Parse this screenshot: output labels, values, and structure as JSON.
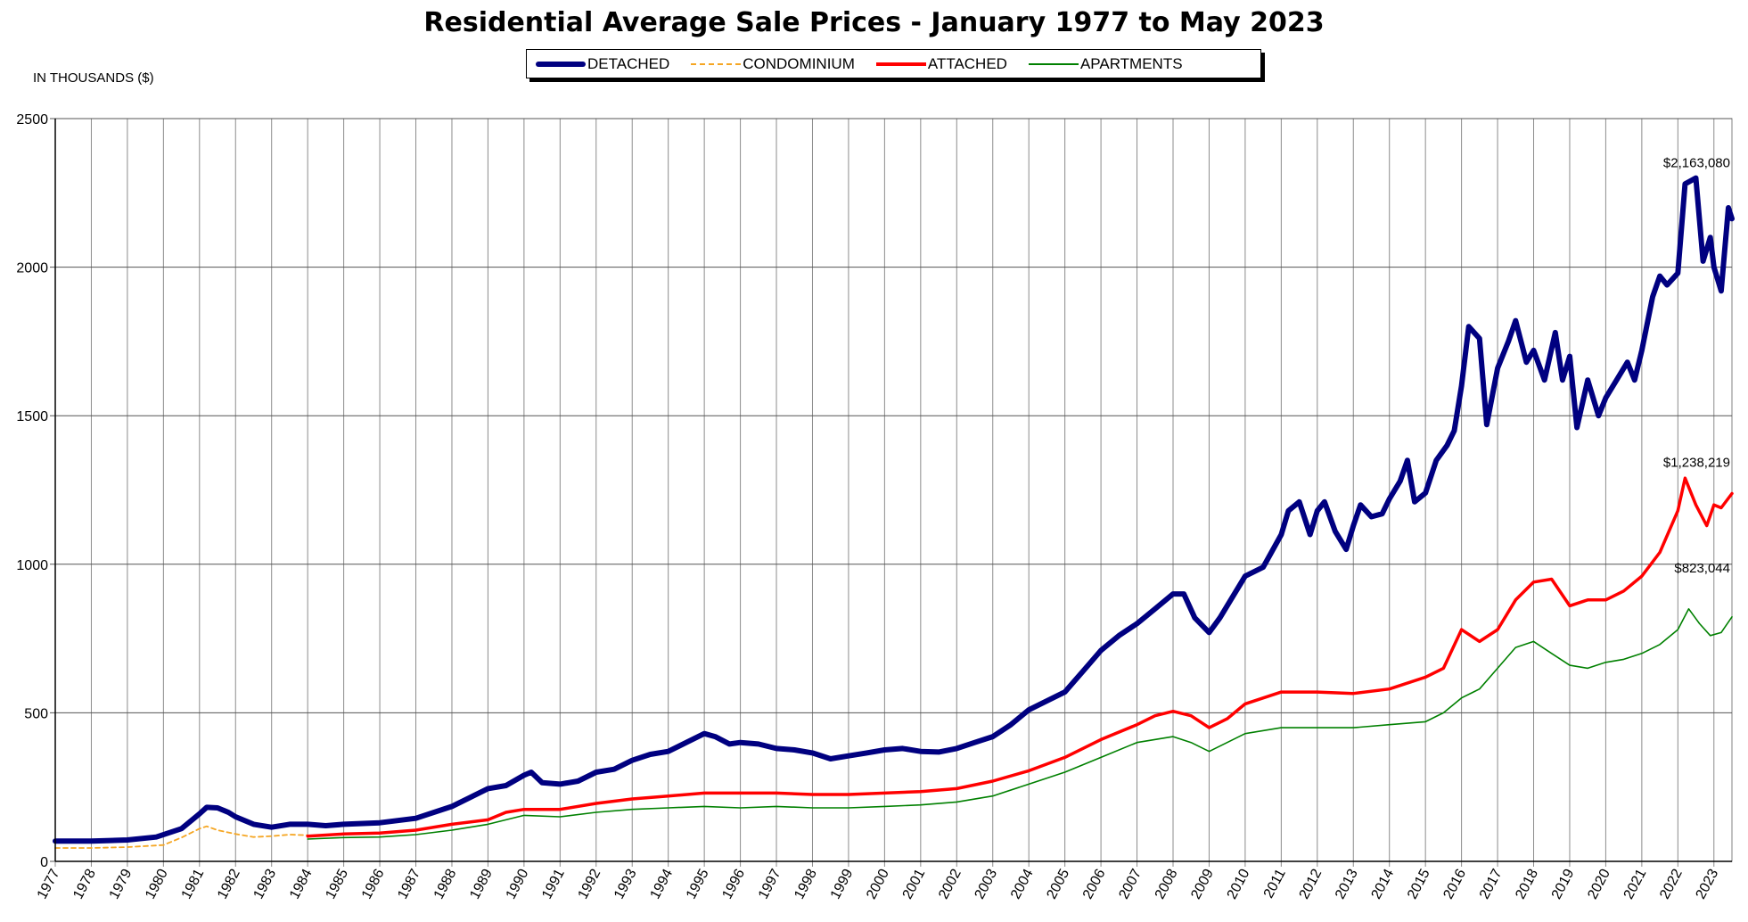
{
  "header": {
    "title": "Residential Average Sale Prices  -  January 1977 to May 2023",
    "units_label": "IN THOUSANDS ($)"
  },
  "legend": [
    {
      "name": "DETACHED",
      "color": "#000080",
      "style": "thick-solid"
    },
    {
      "name": "CONDOMINIUM",
      "color": "#F5A623",
      "style": "dashed"
    },
    {
      "name": "ATTACHED",
      "color": "#FF0000",
      "style": "solid"
    },
    {
      "name": "APARTMENTS",
      "color": "#008000",
      "style": "thin-solid"
    }
  ],
  "chart_data": {
    "type": "line",
    "title": "Residential Average Sale Prices  -  January 1977 to May 2023",
    "ylabel": "IN THOUSANDS ($)",
    "xlim": [
      1977,
      2023.5
    ],
    "ylim": [
      0,
      2500
    ],
    "yticks": [
      0,
      500,
      1000,
      1500,
      2000,
      2500
    ],
    "xticks": [
      "1977",
      "1978",
      "1979",
      "1980",
      "1981",
      "1982",
      "1983",
      "1984",
      "1985",
      "1986",
      "1987",
      "1988",
      "1989",
      "1990",
      "1991",
      "1992",
      "1993",
      "1994",
      "1995",
      "1996",
      "1997",
      "1998",
      "1999",
      "2000",
      "2001",
      "2002",
      "2003",
      "2004",
      "2005",
      "2006",
      "2007",
      "2008",
      "2009",
      "2010",
      "2011",
      "2012",
      "2013",
      "2014",
      "2015",
      "2016",
      "2017",
      "2018",
      "2019",
      "2020",
      "2021",
      "2022",
      "2023"
    ],
    "grid": true,
    "legend_position": "top-center",
    "series": [
      {
        "name": "DETACHED",
        "color": "#000080",
        "points": [
          [
            1977.0,
            68
          ],
          [
            1978.0,
            68
          ],
          [
            1979.0,
            72
          ],
          [
            1979.8,
            82
          ],
          [
            1980.5,
            110
          ],
          [
            1981.0,
            160
          ],
          [
            1981.2,
            182
          ],
          [
            1981.5,
            180
          ],
          [
            1981.8,
            165
          ],
          [
            1982.0,
            150
          ],
          [
            1982.5,
            125
          ],
          [
            1983.0,
            115
          ],
          [
            1983.5,
            125
          ],
          [
            1984.0,
            125
          ],
          [
            1984.5,
            120
          ],
          [
            1985.0,
            125
          ],
          [
            1986.0,
            130
          ],
          [
            1987.0,
            145
          ],
          [
            1988.0,
            185
          ],
          [
            1988.5,
            215
          ],
          [
            1989.0,
            245
          ],
          [
            1989.5,
            255
          ],
          [
            1990.0,
            290
          ],
          [
            1990.2,
            300
          ],
          [
            1990.5,
            265
          ],
          [
            1991.0,
            260
          ],
          [
            1991.5,
            270
          ],
          [
            1992.0,
            300
          ],
          [
            1992.5,
            310
          ],
          [
            1993.0,
            340
          ],
          [
            1993.5,
            360
          ],
          [
            1994.0,
            370
          ],
          [
            1994.5,
            400
          ],
          [
            1995.0,
            430
          ],
          [
            1995.3,
            420
          ],
          [
            1995.7,
            395
          ],
          [
            1996.0,
            400
          ],
          [
            1996.5,
            395
          ],
          [
            1997.0,
            380
          ],
          [
            1997.5,
            375
          ],
          [
            1998.0,
            365
          ],
          [
            1998.5,
            345
          ],
          [
            1999.0,
            355
          ],
          [
            1999.5,
            365
          ],
          [
            2000.0,
            375
          ],
          [
            2000.5,
            380
          ],
          [
            2001.0,
            370
          ],
          [
            2001.5,
            368
          ],
          [
            2002.0,
            380
          ],
          [
            2002.5,
            400
          ],
          [
            2003.0,
            420
          ],
          [
            2003.5,
            460
          ],
          [
            2004.0,
            510
          ],
          [
            2004.5,
            540
          ],
          [
            2005.0,
            570
          ],
          [
            2005.5,
            640
          ],
          [
            2006.0,
            710
          ],
          [
            2006.5,
            760
          ],
          [
            2007.0,
            800
          ],
          [
            2007.5,
            850
          ],
          [
            2008.0,
            900
          ],
          [
            2008.3,
            900
          ],
          [
            2008.6,
            820
          ],
          [
            2009.0,
            770
          ],
          [
            2009.3,
            820
          ],
          [
            2009.6,
            880
          ],
          [
            2010.0,
            960
          ],
          [
            2010.5,
            990
          ],
          [
            2011.0,
            1100
          ],
          [
            2011.2,
            1180
          ],
          [
            2011.5,
            1210
          ],
          [
            2011.8,
            1100
          ],
          [
            2012.0,
            1180
          ],
          [
            2012.2,
            1210
          ],
          [
            2012.5,
            1110
          ],
          [
            2012.8,
            1050
          ],
          [
            2013.0,
            1130
          ],
          [
            2013.2,
            1200
          ],
          [
            2013.5,
            1160
          ],
          [
            2013.8,
            1170
          ],
          [
            2014.0,
            1220
          ],
          [
            2014.3,
            1280
          ],
          [
            2014.5,
            1350
          ],
          [
            2014.7,
            1210
          ],
          [
            2015.0,
            1240
          ],
          [
            2015.3,
            1350
          ],
          [
            2015.6,
            1400
          ],
          [
            2015.8,
            1450
          ],
          [
            2016.0,
            1600
          ],
          [
            2016.2,
            1800
          ],
          [
            2016.5,
            1760
          ],
          [
            2016.7,
            1470
          ],
          [
            2017.0,
            1660
          ],
          [
            2017.3,
            1750
          ],
          [
            2017.5,
            1820
          ],
          [
            2017.8,
            1680
          ],
          [
            2018.0,
            1720
          ],
          [
            2018.3,
            1620
          ],
          [
            2018.6,
            1780
          ],
          [
            2018.8,
            1620
          ],
          [
            2019.0,
            1700
          ],
          [
            2019.2,
            1460
          ],
          [
            2019.5,
            1620
          ],
          [
            2019.8,
            1500
          ],
          [
            2020.0,
            1560
          ],
          [
            2020.3,
            1620
          ],
          [
            2020.6,
            1680
          ],
          [
            2020.8,
            1620
          ],
          [
            2021.0,
            1720
          ],
          [
            2021.3,
            1900
          ],
          [
            2021.5,
            1970
          ],
          [
            2021.7,
            1940
          ],
          [
            2022.0,
            1980
          ],
          [
            2022.2,
            2280
          ],
          [
            2022.5,
            2300
          ],
          [
            2022.7,
            2020
          ],
          [
            2022.9,
            2100
          ],
          [
            2023.0,
            2000
          ],
          [
            2023.2,
            1920
          ],
          [
            2023.4,
            2200
          ],
          [
            2023.5,
            2163
          ]
        ]
      },
      {
        "name": "CONDOMINIUM",
        "color": "#F5A623",
        "points": [
          [
            1977.0,
            45
          ],
          [
            1978.0,
            45
          ],
          [
            1979.0,
            48
          ],
          [
            1980.0,
            55
          ],
          [
            1980.5,
            80
          ],
          [
            1981.0,
            110
          ],
          [
            1981.2,
            118
          ],
          [
            1981.5,
            105
          ],
          [
            1982.0,
            92
          ],
          [
            1982.5,
            82
          ],
          [
            1983.0,
            85
          ],
          [
            1983.5,
            90
          ],
          [
            1984.0,
            88
          ]
        ]
      },
      {
        "name": "ATTACHED",
        "color": "#FF0000",
        "points": [
          [
            1984.0,
            85
          ],
          [
            1985.0,
            92
          ],
          [
            1986.0,
            95
          ],
          [
            1987.0,
            105
          ],
          [
            1988.0,
            125
          ],
          [
            1989.0,
            140
          ],
          [
            1989.5,
            165
          ],
          [
            1990.0,
            175
          ],
          [
            1991.0,
            175
          ],
          [
            1992.0,
            195
          ],
          [
            1993.0,
            210
          ],
          [
            1994.0,
            220
          ],
          [
            1995.0,
            230
          ],
          [
            1996.0,
            230
          ],
          [
            1997.0,
            230
          ],
          [
            1998.0,
            225
          ],
          [
            1999.0,
            225
          ],
          [
            2000.0,
            230
          ],
          [
            2001.0,
            235
          ],
          [
            2002.0,
            245
          ],
          [
            2003.0,
            270
          ],
          [
            2004.0,
            305
          ],
          [
            2005.0,
            350
          ],
          [
            2006.0,
            410
          ],
          [
            2007.0,
            460
          ],
          [
            2007.5,
            490
          ],
          [
            2008.0,
            505
          ],
          [
            2008.5,
            490
          ],
          [
            2009.0,
            450
          ],
          [
            2009.5,
            480
          ],
          [
            2010.0,
            530
          ],
          [
            2011.0,
            570
          ],
          [
            2012.0,
            570
          ],
          [
            2013.0,
            565
          ],
          [
            2014.0,
            580
          ],
          [
            2015.0,
            620
          ],
          [
            2015.5,
            650
          ],
          [
            2016.0,
            780
          ],
          [
            2016.5,
            740
          ],
          [
            2017.0,
            780
          ],
          [
            2017.5,
            880
          ],
          [
            2018.0,
            940
          ],
          [
            2018.5,
            950
          ],
          [
            2019.0,
            860
          ],
          [
            2019.5,
            880
          ],
          [
            2020.0,
            880
          ],
          [
            2020.5,
            910
          ],
          [
            2021.0,
            960
          ],
          [
            2021.5,
            1040
          ],
          [
            2022.0,
            1180
          ],
          [
            2022.2,
            1290
          ],
          [
            2022.5,
            1200
          ],
          [
            2022.8,
            1130
          ],
          [
            2023.0,
            1200
          ],
          [
            2023.2,
            1190
          ],
          [
            2023.5,
            1238
          ]
        ]
      },
      {
        "name": "APARTMENTS",
        "color": "#008000",
        "points": [
          [
            1984.0,
            75
          ],
          [
            1985.0,
            80
          ],
          [
            1986.0,
            82
          ],
          [
            1987.0,
            90
          ],
          [
            1988.0,
            105
          ],
          [
            1989.0,
            125
          ],
          [
            1990.0,
            155
          ],
          [
            1991.0,
            150
          ],
          [
            1992.0,
            165
          ],
          [
            1993.0,
            175
          ],
          [
            1994.0,
            180
          ],
          [
            1995.0,
            185
          ],
          [
            1996.0,
            180
          ],
          [
            1997.0,
            185
          ],
          [
            1998.0,
            180
          ],
          [
            1999.0,
            180
          ],
          [
            2000.0,
            185
          ],
          [
            2001.0,
            190
          ],
          [
            2002.0,
            200
          ],
          [
            2003.0,
            220
          ],
          [
            2004.0,
            260
          ],
          [
            2005.0,
            300
          ],
          [
            2006.0,
            350
          ],
          [
            2007.0,
            400
          ],
          [
            2008.0,
            420
          ],
          [
            2008.5,
            400
          ],
          [
            2009.0,
            370
          ],
          [
            2009.5,
            400
          ],
          [
            2010.0,
            430
          ],
          [
            2011.0,
            450
          ],
          [
            2012.0,
            450
          ],
          [
            2013.0,
            450
          ],
          [
            2014.0,
            460
          ],
          [
            2015.0,
            470
          ],
          [
            2015.5,
            500
          ],
          [
            2016.0,
            550
          ],
          [
            2016.5,
            580
          ],
          [
            2017.0,
            650
          ],
          [
            2017.5,
            720
          ],
          [
            2018.0,
            740
          ],
          [
            2018.5,
            700
          ],
          [
            2019.0,
            660
          ],
          [
            2019.5,
            650
          ],
          [
            2020.0,
            670
          ],
          [
            2020.5,
            680
          ],
          [
            2021.0,
            700
          ],
          [
            2021.5,
            730
          ],
          [
            2022.0,
            780
          ],
          [
            2022.3,
            850
          ],
          [
            2022.6,
            800
          ],
          [
            2022.9,
            760
          ],
          [
            2023.2,
            770
          ],
          [
            2023.5,
            823
          ]
        ]
      }
    ],
    "annotations": [
      {
        "text": "$2,163,080",
        "x": 2023.5,
        "y": 2163,
        "for": "DETACHED"
      },
      {
        "text": "$1,238,219",
        "x": 2023.5,
        "y": 1238,
        "for": "ATTACHED"
      },
      {
        "text": "$823,044",
        "x": 2023.5,
        "y": 823,
        "for": "APARTMENTS"
      }
    ]
  }
}
